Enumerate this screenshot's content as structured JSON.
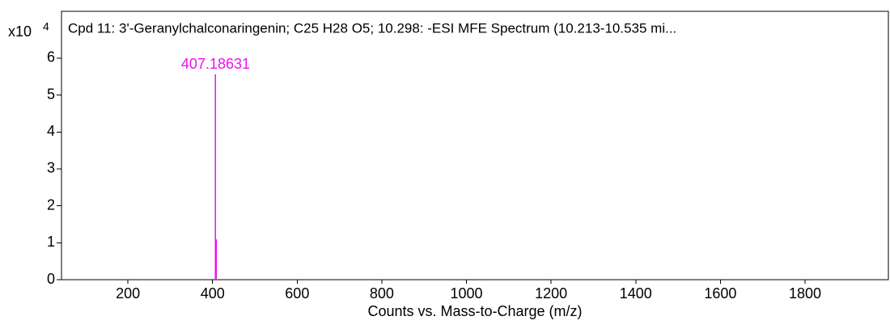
{
  "chart_data": {
    "type": "stem",
    "title": "Cpd 11: 3'-Geranylchalconaringenin; C25 H28 O5; 10.298: -ESI MFE Spectrum (10.213-10.535 mi...",
    "y_multiplier": "x10",
    "y_exponent": "4",
    "xlabel": "Counts vs. Mass-to-Charge (m/z)",
    "x": [
      407.18631,
      408.19
    ],
    "values": [
      5.56,
      1.1
    ],
    "labeled_peaks": [
      0
    ],
    "color": "#ee11ee",
    "xlim": [
      43,
      1997
    ],
    "ylim": [
      0,
      7.27
    ],
    "xticks": [
      200,
      400,
      600,
      800,
      1000,
      1200,
      1400,
      1600,
      1800
    ],
    "yticks": [
      0,
      1,
      2,
      3,
      4,
      5,
      6
    ]
  }
}
